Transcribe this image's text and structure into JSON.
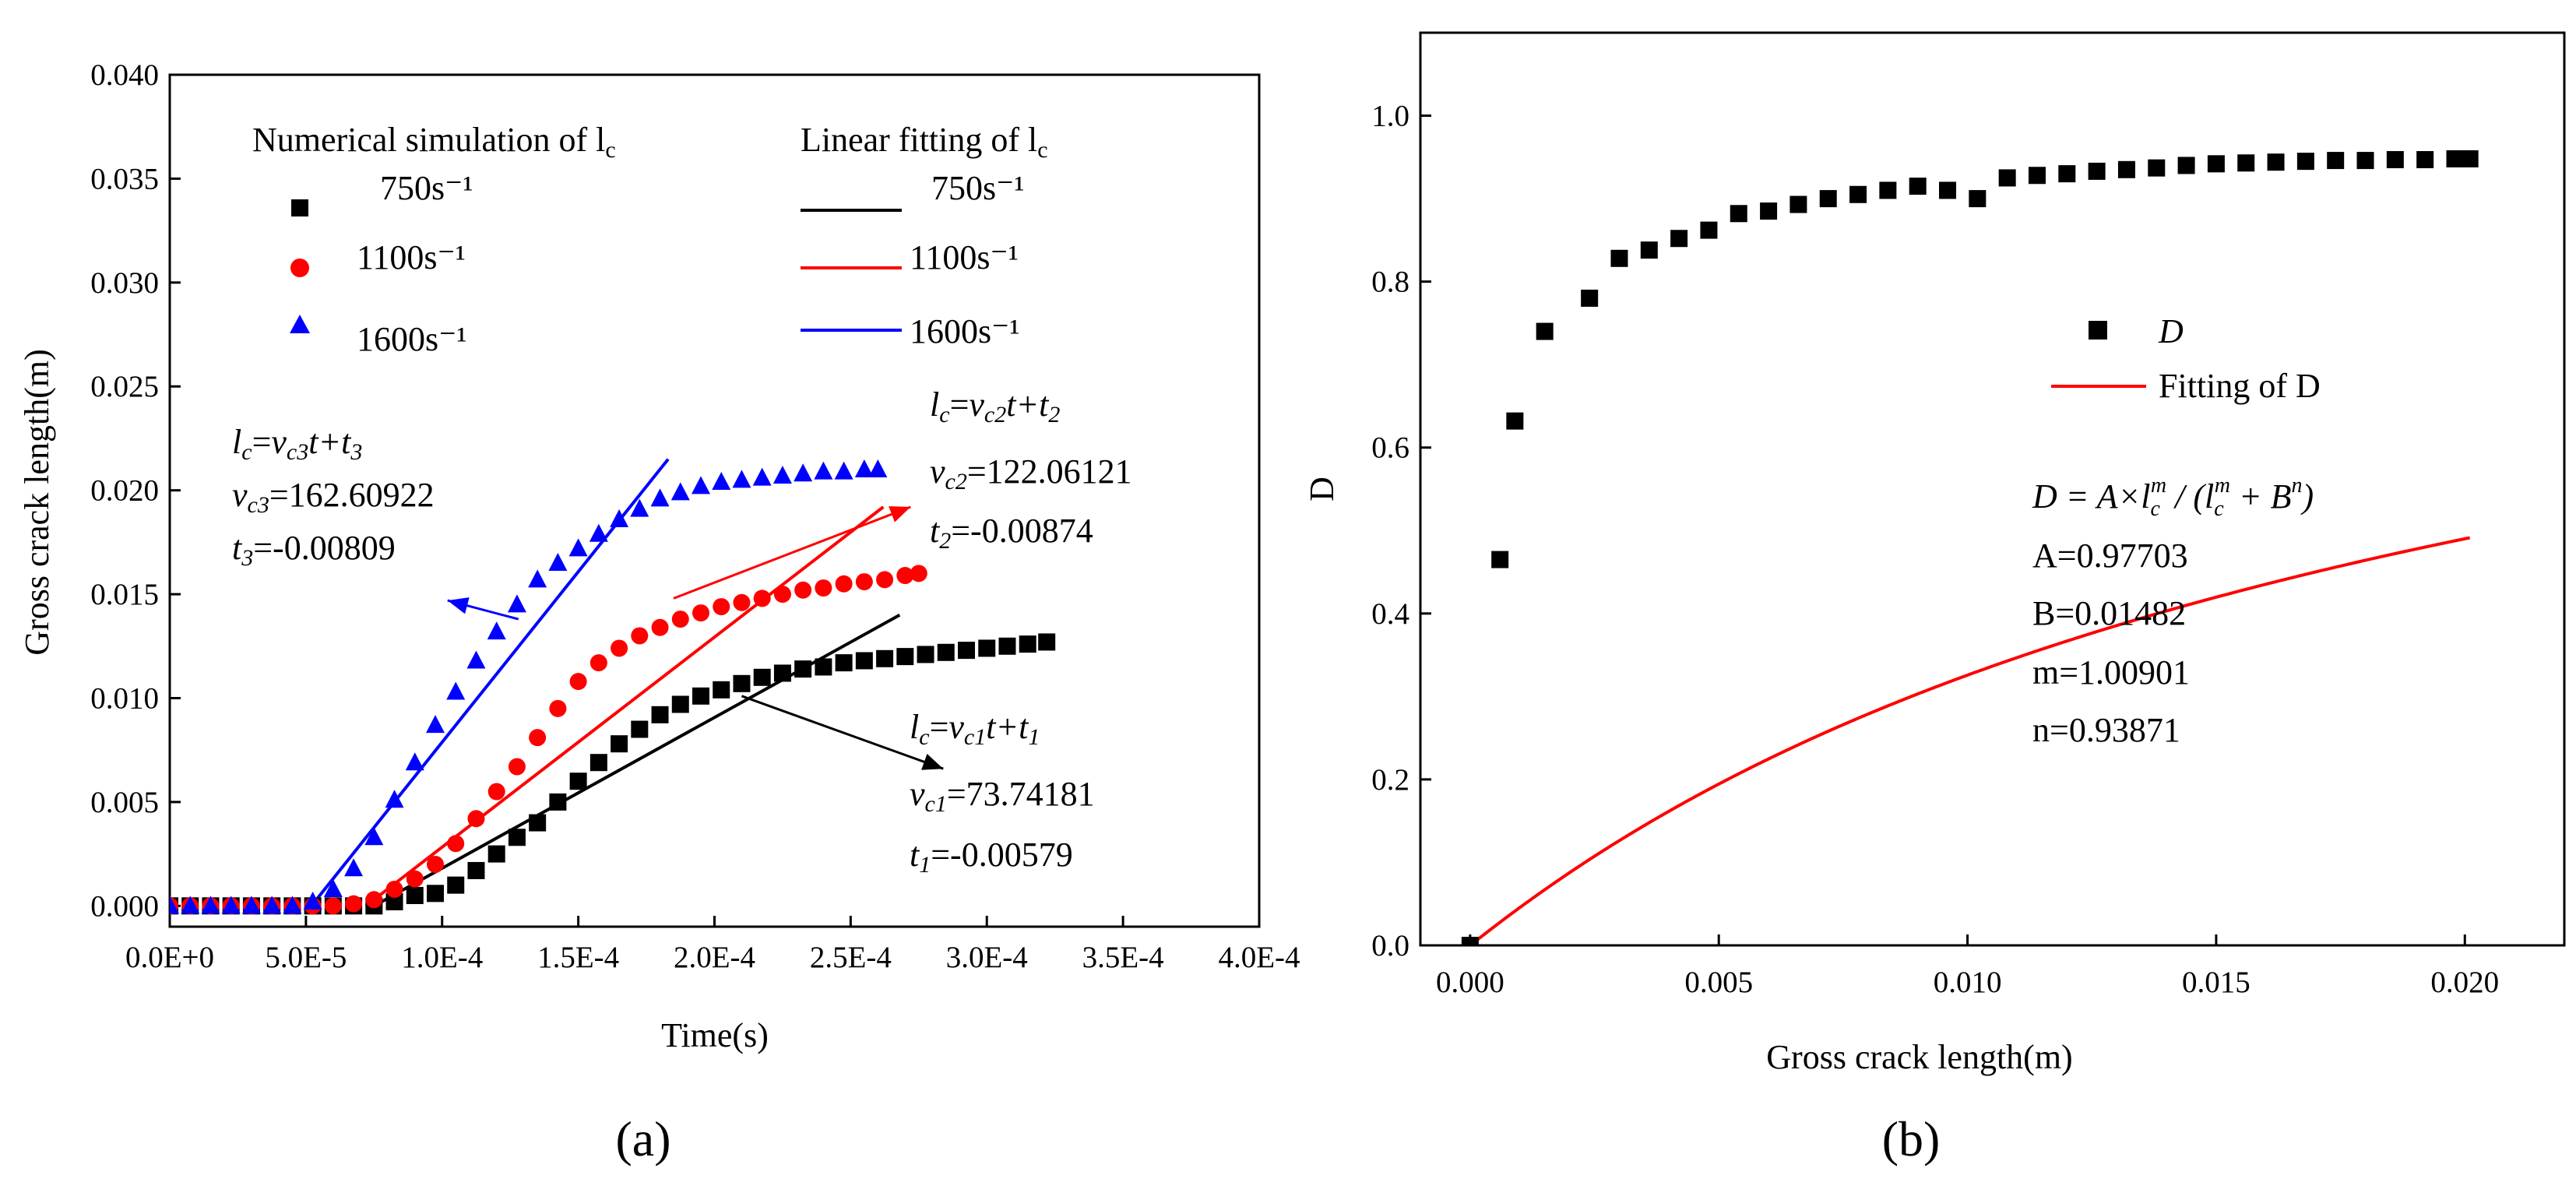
{
  "chart_data": [
    {
      "type": "scatter",
      "panel_label": "(a)",
      "xlabel": "Time(s)",
      "ylabel": "Gross crack length(m)",
      "xlim": [
        0,
        0.0004
      ],
      "ylim": [
        -0.001,
        0.04
      ],
      "xticks": [
        0,
        5e-05,
        0.0001,
        0.00015,
        0.0002,
        0.00025,
        0.0003,
        0.00035,
        0.0004
      ],
      "xtick_labels": [
        "0.0E+0",
        "5.0E-5",
        "1.0E-4",
        "1.5E-4",
        "2.0E-4",
        "2.5E-4",
        "3.0E-4",
        "3.5E-4",
        "4.0E-4"
      ],
      "yticks": [
        0,
        0.005,
        0.01,
        0.015,
        0.02,
        0.025,
        0.03,
        0.035,
        0.04
      ],
      "ytick_labels": [
        "0.000",
        "0.005",
        "0.010",
        "0.015",
        "0.020",
        "0.025",
        "0.030",
        "0.035",
        "0.040"
      ],
      "legend_titles": [
        "Numerical simulation of l",
        "Linear fitting of l"
      ],
      "legend_sub": "c",
      "series": [
        {
          "name": "750s⁻¹",
          "marker": "square",
          "color": "#000000",
          "x": [
            0,
            7.5e-06,
            1.5e-05,
            2.25e-05,
            3e-05,
            3.75e-05,
            4.5e-05,
            5.25e-05,
            6e-05,
            6.75e-05,
            7.5e-05,
            8.25e-05,
            9e-05,
            9.75e-05,
            0.000105,
            0.0001125,
            0.00012,
            0.0001275,
            0.000135,
            0.0001425,
            0.00015,
            0.0001575,
            0.000165,
            0.0001725,
            0.00018,
            0.0001875,
            0.000195,
            0.0002025,
            0.00021,
            0.0002175,
            0.000225,
            0.0002325,
            0.00024,
            0.0002475,
            0.000255,
            0.0002625,
            0.00027,
            0.0002775,
            0.000285,
            0.0002925,
            0.0003,
            0.0003075,
            0.000315,
            0.000322
          ],
          "y": [
            0,
            0,
            0,
            0,
            0,
            0,
            0,
            0,
            0,
            0,
            0,
            0.0002,
            0.0005,
            0.0006,
            0.001,
            0.0017,
            0.0025,
            0.0033,
            0.004,
            0.005,
            0.006,
            0.0069,
            0.0078,
            0.0085,
            0.0092,
            0.0097,
            0.0101,
            0.0104,
            0.0107,
            0.011,
            0.0112,
            0.0114,
            0.0115,
            0.0117,
            0.0118,
            0.0119,
            0.012,
            0.0121,
            0.0122,
            0.0123,
            0.0124,
            0.0125,
            0.0126,
            0.0127
          ]
        },
        {
          "name": "1100s⁻¹",
          "marker": "circle",
          "color": "#ff0000",
          "x": [
            0,
            7.5e-06,
            1.5e-05,
            2.25e-05,
            3e-05,
            3.75e-05,
            4.5e-05,
            5.25e-05,
            6e-05,
            6.75e-05,
            7.5e-05,
            8.25e-05,
            9e-05,
            9.75e-05,
            0.000105,
            0.0001125,
            0.00012,
            0.0001275,
            0.000135,
            0.0001425,
            0.00015,
            0.0001575,
            0.000165,
            0.0001725,
            0.00018,
            0.0001875,
            0.000195,
            0.0002025,
            0.00021,
            0.0002175,
            0.000225,
            0.0002325,
            0.00024,
            0.0002475,
            0.000255,
            0.0002625,
            0.00027,
            0.000275
          ],
          "y": [
            0,
            0,
            0,
            0,
            0,
            0,
            0,
            0,
            0,
            0.0001,
            0.0003,
            0.0008,
            0.0013,
            0.002,
            0.003,
            0.0042,
            0.0055,
            0.0067,
            0.0081,
            0.0095,
            0.0108,
            0.0117,
            0.0124,
            0.013,
            0.0134,
            0.0138,
            0.0141,
            0.0144,
            0.0146,
            0.0148,
            0.015,
            0.0152,
            0.0153,
            0.0155,
            0.0156,
            0.0157,
            0.0159,
            0.016
          ]
        },
        {
          "name": "1600s⁻¹",
          "marker": "triangle",
          "color": "#0000ff",
          "x": [
            0,
            7.5e-06,
            1.5e-05,
            2.25e-05,
            3e-05,
            3.75e-05,
            4.5e-05,
            5.25e-05,
            6e-05,
            6.75e-05,
            7.5e-05,
            8.25e-05,
            9e-05,
            9.75e-05,
            0.000105,
            0.0001125,
            0.00012,
            0.0001275,
            0.000135,
            0.0001425,
            0.00015,
            0.0001575,
            0.000165,
            0.0001725,
            0.00018,
            0.0001875,
            0.000195,
            0.0002025,
            0.00021,
            0.0002175,
            0.000225,
            0.0002325,
            0.00024,
            0.0002475,
            0.000255,
            0.00026
          ],
          "y": [
            0,
            0,
            0,
            0,
            0,
            0,
            0,
            0.0002,
            0.0008,
            0.0018,
            0.0033,
            0.0051,
            0.0069,
            0.0087,
            0.0103,
            0.0118,
            0.0132,
            0.0145,
            0.0157,
            0.0165,
            0.0172,
            0.0179,
            0.0186,
            0.0191,
            0.0196,
            0.0199,
            0.0202,
            0.0204,
            0.0205,
            0.0206,
            0.0207,
            0.0208,
            0.0209,
            0.0209,
            0.021,
            0.021
          ]
        }
      ],
      "fit_lines": [
        {
          "name": "750s⁻¹",
          "color": "#000000",
          "x": [
            7.5e-05,
            0.000268
          ],
          "y": [
            0,
            0.014
          ]
        },
        {
          "name": "1100s⁻¹",
          "color": "#ff0000",
          "x": [
            7.2e-05,
            0.000262
          ],
          "y": [
            0,
            0.0192
          ]
        },
        {
          "name": "1600s⁻¹",
          "color": "#0000ff",
          "x": [
            5.2e-05,
            0.000183
          ],
          "y": [
            0,
            0.0215
          ]
        }
      ],
      "annotations": [
        {
          "l1": "l",
          "l1s": "c",
          "l2": "v",
          "l2s": "c3",
          "l3": "t+t",
          "l3s": "3",
          "vlabel": "v",
          "vsub": "c3",
          "vval": "=162.60922",
          "tlabel": "t",
          "tsub": "3",
          "tval": "=-0.00809"
        },
        {
          "l1": "l",
          "l1s": "c",
          "l2": "v",
          "l2s": "c2",
          "l3": "t+t",
          "l3s": "2",
          "vlabel": "v",
          "vsub": "c2",
          "vval": "=122.06121",
          "tlabel": "t",
          "tsub": "2",
          "tval": "=-0.00874"
        },
        {
          "l1": "l",
          "l1s": "c",
          "l2": "v",
          "l2s": "c1",
          "l3": "t+t",
          "l3s": "1",
          "vlabel": "v",
          "vsub": "c1",
          "vval": "=73.74181",
          "tlabel": "t",
          "tsub": "1",
          "tval": "=-0.00579"
        }
      ],
      "arrows": [
        {
          "color": "#0000ff",
          "from": [
            0.000128,
            0.0138
          ],
          "to": [
            0.000102,
            0.0147
          ]
        },
        {
          "color": "#ff0000",
          "from": [
            0.000185,
            0.0148
          ],
          "to": [
            0.000272,
            0.0192
          ]
        },
        {
          "color": "#000000",
          "from": [
            0.00021,
            0.0101
          ],
          "to": [
            0.000284,
            0.0066
          ]
        }
      ]
    },
    {
      "type": "scatter",
      "panel_label": "(b)",
      "xlabel": "Gross crack length(m)",
      "ylabel": "D",
      "xlim": [
        -0.001,
        0.022
      ],
      "ylim": [
        0,
        1.1
      ],
      "xticks": [
        0,
        0.005,
        0.01,
        0.015,
        0.02
      ],
      "xtick_labels": [
        "0.000",
        "0.005",
        "0.010",
        "0.015",
        "0.020"
      ],
      "yticks": [
        0,
        0.2,
        0.4,
        0.6,
        0.8,
        1.0
      ],
      "ytick_labels": [
        "0.0",
        "0.2",
        "0.4",
        "0.6",
        "0.8",
        "1.0"
      ],
      "legend": [
        "D",
        "Fitting of D"
      ],
      "series": [
        {
          "name": "D",
          "marker": "square",
          "color": "#000000",
          "x": [
            0,
            0.0006,
            0.0009,
            0.0015,
            0.0024,
            0.003,
            0.0036,
            0.0042,
            0.0048,
            0.0054,
            0.006,
            0.0066,
            0.0072,
            0.0078,
            0.0084,
            0.009,
            0.0096,
            0.0102,
            0.0108,
            0.0114,
            0.012,
            0.0126,
            0.0132,
            0.0138,
            0.0144,
            0.015,
            0.0156,
            0.0162,
            0.0168,
            0.0174,
            0.018,
            0.0186,
            0.0192,
            0.0198,
            0.0201
          ],
          "y": [
            0,
            0.465,
            0.632,
            0.74,
            0.78,
            0.828,
            0.838,
            0.852,
            0.862,
            0.882,
            0.885,
            0.893,
            0.9,
            0.905,
            0.91,
            0.915,
            0.91,
            0.9,
            0.925,
            0.928,
            0.93,
            0.933,
            0.935,
            0.937,
            0.94,
            0.942,
            0.943,
            0.944,
            0.945,
            0.946,
            0.946,
            0.947,
            0.947,
            0.948,
            0.948
          ]
        }
      ],
      "fit": {
        "name": "Fitting of D",
        "color": "#ff0000",
        "A": 0.97703,
        "B": 0.01482,
        "m": 1.00901,
        "n": 0.93871,
        "x_range": [
          0,
          0.0201
        ]
      },
      "equation": {
        "lhs": "D = A×",
        "l": "l",
        "sub": "c",
        "sup_m": "m",
        "slash": " / (",
        "plus": " + B",
        "sup_n": "n",
        "close": ")"
      },
      "params": [
        "A=0.97703",
        "B=0.01482",
        "m=1.00901",
        "n=0.93871"
      ]
    }
  ]
}
